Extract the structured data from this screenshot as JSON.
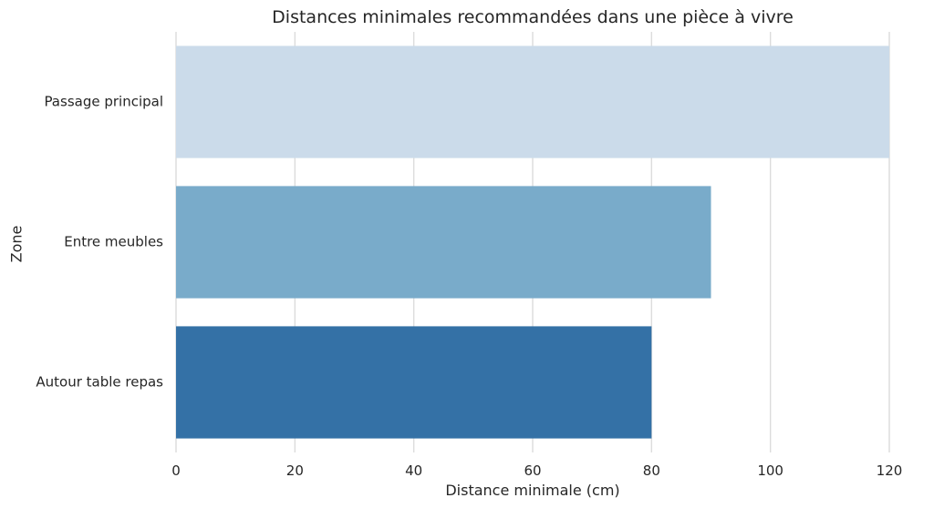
{
  "chart_data": {
    "type": "bar",
    "orientation": "horizontal",
    "title": "Distances minimales recommandées dans une pièce à vivre",
    "xlabel": "Distance minimale (cm)",
    "ylabel": "Zone",
    "categories": [
      "Passage principal",
      "Entre meubles",
      "Autour table repas"
    ],
    "values": [
      120,
      90,
      80
    ],
    "colors": [
      "#cbdbea",
      "#79abca",
      "#3471a6"
    ],
    "xlim": [
      0,
      120
    ],
    "xticks": [
      0,
      20,
      40,
      60,
      80,
      100,
      120
    ],
    "grid": "vertical",
    "legend": "none"
  }
}
